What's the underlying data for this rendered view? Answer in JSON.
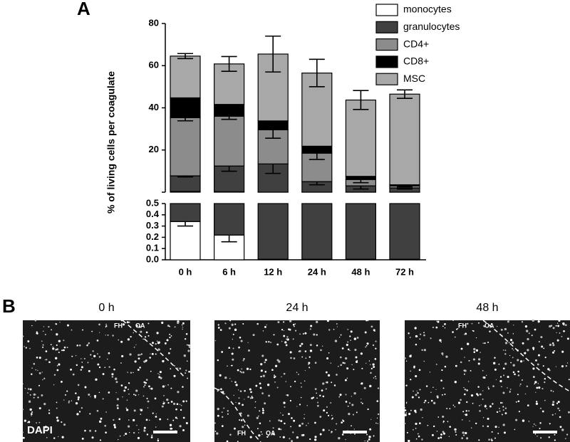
{
  "chart_data": {
    "type": "stacked-bar",
    "panel_label": "A",
    "ylabel": "% of living cells per coagulate",
    "categories": [
      "0 h",
      "6 h",
      "12 h",
      "24 h",
      "48 h",
      "72 h"
    ],
    "ylim": [
      0,
      80
    ],
    "yticks": [
      20,
      40,
      60,
      80
    ],
    "lower_ylim": [
      0,
      0.5
    ],
    "lower_yticks": [
      {
        "value": 0,
        "label": "0.0"
      },
      0.1,
      0.2,
      0.3,
      0.4,
      0.5
    ],
    "series": [
      {
        "name": "monocytes",
        "color": "#ffffff",
        "values": [
          0.34,
          0.22,
          0.005,
          0.005,
          0.005,
          0.005
        ],
        "errors": [
          0.04,
          0.06,
          null,
          null,
          null,
          null
        ]
      },
      {
        "name": "granulocytes",
        "color": "#404040",
        "values": [
          7.4,
          12.2,
          13.4,
          5,
          3,
          2
        ],
        "errors": [
          0.5,
          2.5,
          4.5,
          1.5,
          1.5,
          0.5
        ]
      },
      {
        "name": "CD4+",
        "color": "#8c8c8c",
        "values": [
          27.6,
          23.6,
          16.2,
          13.5,
          3,
          1
        ],
        "errors": [
          1.5,
          1.5,
          4,
          3,
          1.5,
          0.5
        ]
      },
      {
        "name": "CD8+",
        "color": "#000000",
        "values": [
          9.4,
          5.6,
          4.2,
          3.3,
          1.5,
          0.5
        ],
        "errors": [
          0.5,
          1,
          1.5,
          1.5,
          0.5,
          0.5
        ]
      },
      {
        "name": "MSC",
        "color": "#a8a8a8",
        "values": [
          19.8,
          19.2,
          31.7,
          34.7,
          36.2,
          43
        ],
        "errors": [
          1.2,
          3.5,
          8.5,
          6.5,
          4.5,
          2
        ]
      }
    ]
  },
  "panel_b": {
    "label": "B",
    "images": [
      {
        "title": "0 h",
        "labels": [
          "FH",
          "OA",
          "DAPI"
        ]
      },
      {
        "title": "24 h",
        "labels": [
          "FH",
          "OA"
        ]
      },
      {
        "title": "48 h",
        "labels": [
          "FH",
          "OA"
        ]
      }
    ]
  }
}
